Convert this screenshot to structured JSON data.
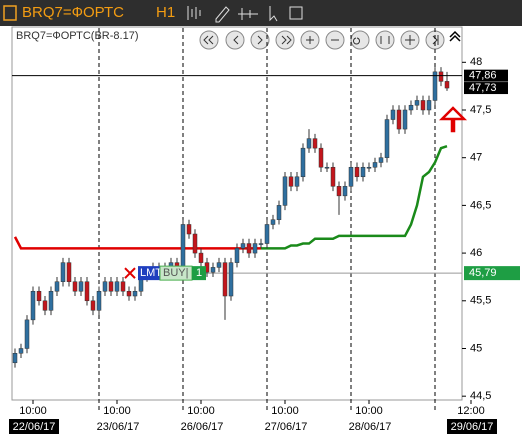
{
  "toolbar": {
    "symbol": "BRQ7=ФОРТС",
    "timeframe": "H1"
  },
  "chart_data": {
    "type": "candlestick",
    "title": "BRQ7=ФОРТС(BR-8.17)",
    "up_color": "#2f6f9f",
    "down_color": "#c3161c",
    "open": [
      44.85,
      44.95,
      45.0,
      45.3,
      45.6,
      45.5,
      45.4,
      45.6,
      45.7,
      45.9,
      45.7,
      45.6,
      45.7,
      45.5,
      45.4,
      45.6,
      45.7,
      45.6,
      45.7,
      45.6,
      45.55,
      45.6,
      45.75,
      45.8,
      45.85,
      45.8,
      45.85,
      45.9,
      45.8,
      46.3,
      46.2,
      46.0,
      45.9,
      45.8,
      45.85,
      45.9,
      45.55,
      45.9,
      46.05,
      46.1,
      46.0,
      46.1,
      46.1,
      46.3,
      46.35,
      46.5,
      46.8,
      46.7,
      46.8,
      47.1,
      47.2,
      47.1,
      46.9,
      46.9,
      46.7,
      46.6,
      46.7,
      46.9,
      46.8,
      46.9,
      46.9,
      46.95,
      47.0,
      47.4,
      47.5,
      47.3,
      47.5,
      47.55,
      47.6,
      47.5,
      47.6,
      47.9,
      47.8
    ],
    "high": [
      45.0,
      45.05,
      45.35,
      45.65,
      45.65,
      45.55,
      45.65,
      45.75,
      45.95,
      45.95,
      45.75,
      45.75,
      45.75,
      45.55,
      45.65,
      45.75,
      45.75,
      45.75,
      45.75,
      45.65,
      45.65,
      45.8,
      45.85,
      45.9,
      45.9,
      45.9,
      45.95,
      45.95,
      46.35,
      46.35,
      46.25,
      46.05,
      45.95,
      45.9,
      45.95,
      45.95,
      45.95,
      46.1,
      46.15,
      46.15,
      46.15,
      46.15,
      46.35,
      46.4,
      46.55,
      46.85,
      46.85,
      46.85,
      47.15,
      47.3,
      47.25,
      47.15,
      46.95,
      46.95,
      46.75,
      46.75,
      46.95,
      46.95,
      46.95,
      46.95,
      47.0,
      47.05,
      47.45,
      47.55,
      47.55,
      47.55,
      47.6,
      47.65,
      47.65,
      47.65,
      47.95,
      47.95,
      47.9
    ],
    "low": [
      44.8,
      44.9,
      44.95,
      45.25,
      45.45,
      45.35,
      45.35,
      45.55,
      45.65,
      45.65,
      45.55,
      45.55,
      45.45,
      45.35,
      45.35,
      45.55,
      45.55,
      45.55,
      45.55,
      45.5,
      45.5,
      45.55,
      45.7,
      45.75,
      45.75,
      45.75,
      45.8,
      45.75,
      45.75,
      46.15,
      45.95,
      45.85,
      45.75,
      45.75,
      45.8,
      45.3,
      45.5,
      45.85,
      46.0,
      45.95,
      45.95,
      46.05,
      46.05,
      46.25,
      46.3,
      46.45,
      46.65,
      46.65,
      46.75,
      47.05,
      47.05,
      46.85,
      46.85,
      46.65,
      46.4,
      46.55,
      46.65,
      46.75,
      46.75,
      46.85,
      46.85,
      46.9,
      46.95,
      47.35,
      47.25,
      47.25,
      47.45,
      47.5,
      47.45,
      47.45,
      47.55,
      47.75,
      47.7
    ],
    "close": [
      44.95,
      45.0,
      45.3,
      45.6,
      45.5,
      45.4,
      45.6,
      45.7,
      45.9,
      45.7,
      45.6,
      45.7,
      45.5,
      45.4,
      45.6,
      45.7,
      45.6,
      45.7,
      45.6,
      45.55,
      45.6,
      45.75,
      45.8,
      45.85,
      45.8,
      45.85,
      45.9,
      45.8,
      46.3,
      46.2,
      46.0,
      45.9,
      45.8,
      45.85,
      45.9,
      45.55,
      45.9,
      46.05,
      46.1,
      46.0,
      46.1,
      46.1,
      46.3,
      46.35,
      46.5,
      46.8,
      46.7,
      46.8,
      47.1,
      47.2,
      47.1,
      46.9,
      46.9,
      46.7,
      46.6,
      46.7,
      46.9,
      46.8,
      46.9,
      46.9,
      46.95,
      47.0,
      47.4,
      47.5,
      47.3,
      47.5,
      47.55,
      47.6,
      47.5,
      47.6,
      47.9,
      47.8,
      47.73
    ],
    "lines": [
      {
        "color": "#e00000",
        "values": [
          46.17,
          46.05,
          46.05,
          46.05,
          46.05,
          46.05,
          46.05,
          46.05,
          46.05,
          46.05,
          46.05,
          46.05,
          46.05,
          46.05,
          46.05,
          46.05,
          46.05,
          46.05,
          46.05,
          46.05,
          46.05,
          46.05,
          46.05,
          46.05,
          46.05,
          46.05,
          46.05,
          46.05,
          46.05,
          46.05,
          46.05,
          46.05,
          46.05,
          46.05,
          46.05,
          46.05,
          46.05,
          46.05,
          46.05,
          46.05,
          46.05,
          46.05,
          null,
          null,
          null,
          null,
          null,
          null,
          null,
          null,
          null,
          null,
          null,
          null,
          null,
          null,
          null,
          null,
          null,
          null,
          null,
          null,
          null,
          null,
          null,
          null,
          null,
          null,
          null,
          null,
          null,
          null,
          null
        ]
      },
      {
        "color": "#1a8a1a",
        "values": [
          null,
          null,
          null,
          null,
          null,
          null,
          null,
          null,
          null,
          null,
          null,
          null,
          null,
          null,
          null,
          null,
          null,
          null,
          null,
          null,
          null,
          null,
          null,
          null,
          null,
          null,
          null,
          null,
          null,
          null,
          null,
          null,
          null,
          null,
          null,
          null,
          null,
          null,
          null,
          null,
          null,
          46.05,
          46.05,
          46.05,
          46.05,
          46.05,
          46.08,
          46.08,
          46.1,
          46.1,
          46.15,
          46.15,
          46.15,
          46.15,
          46.18,
          46.18,
          46.18,
          46.18,
          46.18,
          46.18,
          46.18,
          46.18,
          46.18,
          46.18,
          46.18,
          46.18,
          46.3,
          46.5,
          46.8,
          46.85,
          46.95,
          47.1,
          47.12
        ]
      }
    ],
    "ylim": [
      44.46,
      48.37
    ],
    "yticks": [
      48,
      {
        "value": 47.5,
        "label": "47,5"
      },
      47,
      {
        "value": 46.5,
        "label": "46,5"
      },
      46,
      {
        "value": 45.5,
        "label": "45,5"
      },
      45,
      {
        "value": 44.5,
        "label": "44,5"
      }
    ],
    "xlim": [
      -0.5,
      74.5
    ],
    "xticks": [
      {
        "value": 3,
        "label": "10:00"
      },
      {
        "value": 17,
        "label": "10:00"
      },
      {
        "value": 31,
        "label": "10:00"
      },
      {
        "value": 45,
        "label": "10:00"
      },
      {
        "value": 59,
        "label": "10:00"
      },
      {
        "value": 76,
        "label": "12:00"
      }
    ],
    "xtick_dates": [
      "22/06/17",
      "23/06/17",
      "26/06/17",
      "27/06/17",
      "28/06/17",
      "29/06/17"
    ],
    "day_starts": [
      14,
      28,
      42,
      56,
      70
    ],
    "price_labels": [
      {
        "value": 47.86,
        "label": "47,86",
        "color": "#000000",
        "line": true
      },
      {
        "value": 47.73,
        "label": "47,73",
        "color": "#000000",
        "line": false
      }
    ],
    "order": {
      "value": 45.79,
      "label": "45,79",
      "color": "#1e9e44",
      "kind": "LMT",
      "side": "BUY|",
      "quantity": 1
    }
  }
}
